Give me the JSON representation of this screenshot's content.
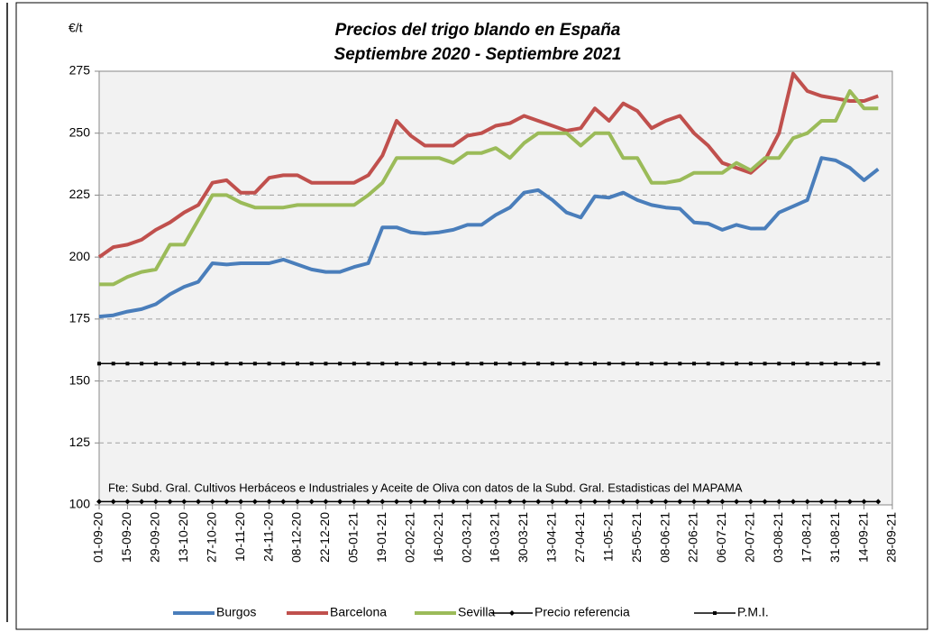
{
  "chart_data": {
    "type": "line",
    "title": "Precios del trigo blando en España",
    "subtitle": "Septiembre 2020 - Septiembre 2021",
    "y_label": "€/t",
    "annotation": "Fte: Subd. Gral. Cultivos Herbáceos e Industriales y Aceite de Oliva  con datos de la Subd. Gral. Estadisticas del MAPAMA",
    "categories": [
      "01-09-20",
      null,
      "15-09-20",
      null,
      "29-09-20",
      null,
      "13-10-20",
      null,
      "27-10-20",
      null,
      "10-11-20",
      null,
      "24-11-20",
      null,
      "08-12-20",
      null,
      "22-12-20",
      null,
      "05-01-21",
      null,
      "19-01-21",
      null,
      "02-02-21",
      null,
      "16-02-21",
      null,
      "02-03-21",
      null,
      "16-03-21",
      null,
      "30-03-21",
      null,
      "13-04-21",
      null,
      "27-04-21",
      null,
      "11-05-21",
      null,
      "25-05-21",
      null,
      "08-06-21",
      null,
      "22-06-21",
      null,
      "06-07-21",
      null,
      "20-07-21",
      null,
      "03-08-21",
      null,
      "17-08-21",
      null,
      "31-08-21",
      null,
      "14-09-21",
      null,
      "28-09-21"
    ],
    "series": [
      {
        "name": "Burgos",
        "color": "#4a7ebb",
        "values": [
          176,
          176.5,
          178,
          179,
          181,
          185,
          188,
          190,
          197.5,
          197,
          197.5,
          197.5,
          197.5,
          199,
          197,
          195,
          194,
          194,
          196,
          197.5,
          212,
          212,
          210,
          209.5,
          210,
          211,
          213,
          213,
          217,
          220,
          226,
          227,
          223,
          218,
          216,
          224.5,
          224,
          226,
          223,
          221,
          220,
          219.5,
          214,
          213.5,
          211,
          213,
          211.5,
          211.5,
          218,
          220.5,
          223,
          240,
          239,
          236,
          231,
          235.5,
          null
        ]
      },
      {
        "name": "Barcelona",
        "color": "#c0504d",
        "values": [
          200,
          204,
          205,
          207,
          211,
          214,
          218,
          221,
          230,
          231,
          226,
          226,
          232,
          233,
          233,
          230,
          230,
          230,
          230,
          233,
          241,
          255,
          249,
          245,
          245,
          245,
          249,
          250,
          253,
          254,
          257,
          255,
          253,
          251,
          252,
          260,
          255,
          262,
          259,
          252,
          255,
          257,
          250,
          245,
          238,
          236,
          234,
          239,
          250,
          274,
          267,
          265,
          264,
          263,
          263,
          265,
          null
        ]
      },
      {
        "name": "Sevilla",
        "color": "#9bbb59",
        "values": [
          189,
          189,
          192,
          194,
          195,
          205,
          205,
          215,
          225,
          225,
          222,
          220,
          220,
          220,
          221,
          221,
          221,
          221,
          221,
          225,
          230,
          240,
          240,
          240,
          240,
          238,
          242,
          242,
          244,
          240,
          246,
          250,
          250,
          250,
          245,
          250,
          250,
          240,
          240,
          230,
          230,
          231,
          234,
          234,
          234,
          238,
          235,
          240,
          240,
          248,
          250,
          255,
          255,
          267,
          260,
          260,
          null
        ]
      },
      {
        "name": "Precio referencia",
        "color": "#000000",
        "marker": "diamond",
        "values": [
          101.3,
          101.3,
          101.3,
          101.3,
          101.3,
          101.3,
          101.3,
          101.3,
          101.3,
          101.3,
          101.3,
          101.3,
          101.3,
          101.3,
          101.3,
          101.3,
          101.3,
          101.3,
          101.3,
          101.3,
          101.3,
          101.3,
          101.3,
          101.3,
          101.3,
          101.3,
          101.3,
          101.3,
          101.3,
          101.3,
          101.3,
          101.3,
          101.3,
          101.3,
          101.3,
          101.3,
          101.3,
          101.3,
          101.3,
          101.3,
          101.3,
          101.3,
          101.3,
          101.3,
          101.3,
          101.3,
          101.3,
          101.3,
          101.3,
          101.3,
          101.3,
          101.3,
          101.3,
          101.3,
          101.3,
          101.3,
          null
        ]
      },
      {
        "name": "P.M.I.",
        "color": "#000000",
        "marker": "square",
        "values": [
          157,
          157,
          157,
          157,
          157,
          157,
          157,
          157,
          157,
          157,
          157,
          157,
          157,
          157,
          157,
          157,
          157,
          157,
          157,
          157,
          157,
          157,
          157,
          157,
          157,
          157,
          157,
          157,
          157,
          157,
          157,
          157,
          157,
          157,
          157,
          157,
          157,
          157,
          157,
          157,
          157,
          157,
          157,
          157,
          157,
          157,
          157,
          157,
          157,
          157,
          157,
          157,
          157,
          157,
          157,
          157,
          null
        ]
      }
    ],
    "ylim": [
      100,
      275
    ],
    "yticks": [
      100,
      125,
      150,
      175,
      200,
      225,
      250,
      275
    ],
    "grid": true,
    "legend": "bottom"
  }
}
